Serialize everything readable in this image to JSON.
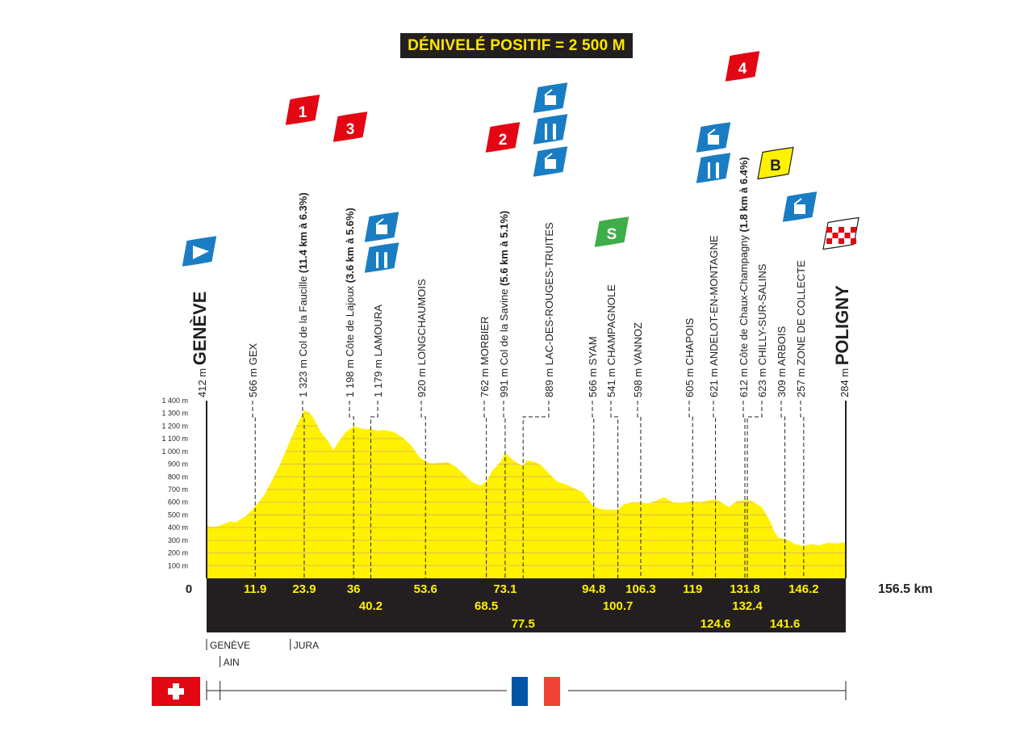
{
  "title": "DÉNIVELÉ POSITIF = 2 500 M",
  "colors": {
    "profile_fill": "#fff200",
    "profile_stripe": "#e8c44a",
    "ground": "#231f20",
    "km_label": "#fff200",
    "climb_flag": "#e30613",
    "feed_flag": "#1a7dc4",
    "sprint_flag": "#3fae49",
    "bonus_flag": "#fff200",
    "swiss_red": "#e30613",
    "french_blue": "#0055a4",
    "french_red": "#ef4135"
  },
  "chart_data": {
    "type": "area",
    "title": "DÉNIVELÉ POSITIF = 2 500 M",
    "xlabel": "",
    "ylabel": "",
    "xlim": [
      0,
      156.5
    ],
    "ylim": [
      0,
      1400
    ],
    "y_unit": "m",
    "x_unit": "km",
    "y_ticks": [
      "1 400 m",
      "1 300 m",
      "1 200 m",
      "1 100 m",
      "1 000 m",
      "900 m",
      "800 m",
      "700 m",
      "600 m",
      "500 m",
      "400 m",
      "300 m",
      "200 m",
      "100 m"
    ],
    "x_start_label": "0",
    "x_end_label": "156.5 km",
    "profile": [
      [
        0,
        412
      ],
      [
        2,
        405
      ],
      [
        4,
        425
      ],
      [
        6,
        450
      ],
      [
        7,
        440
      ],
      [
        8,
        460
      ],
      [
        10,
        500
      ],
      [
        11.9,
        566
      ],
      [
        14,
        650
      ],
      [
        16,
        770
      ],
      [
        18,
        900
      ],
      [
        20,
        1050
      ],
      [
        22,
        1200
      ],
      [
        23.9,
        1323
      ],
      [
        25,
        1310
      ],
      [
        26,
        1270
      ],
      [
        28,
        1150
      ],
      [
        30,
        1070
      ],
      [
        31,
        1010
      ],
      [
        32,
        1060
      ],
      [
        34,
        1150
      ],
      [
        36,
        1198
      ],
      [
        37,
        1190
      ],
      [
        38,
        1180
      ],
      [
        39,
        1175
      ],
      [
        40.2,
        1179
      ],
      [
        42,
        1160
      ],
      [
        43,
        1170
      ],
      [
        44,
        1165
      ],
      [
        46,
        1150
      ],
      [
        48,
        1110
      ],
      [
        50,
        1050
      ],
      [
        52,
        960
      ],
      [
        53.6,
        920
      ],
      [
        55,
        905
      ],
      [
        57,
        910
      ],
      [
        59,
        915
      ],
      [
        61,
        880
      ],
      [
        63,
        820
      ],
      [
        65,
        760
      ],
      [
        67,
        730
      ],
      [
        68.5,
        762
      ],
      [
        70,
        850
      ],
      [
        72,
        920
      ],
      [
        73.1,
        991
      ],
      [
        74,
        960
      ],
      [
        75.5,
        920
      ],
      [
        76.5,
        900
      ],
      [
        77.5,
        889
      ],
      [
        78.5,
        930
      ],
      [
        80,
        920
      ],
      [
        82,
        890
      ],
      [
        84,
        820
      ],
      [
        86,
        760
      ],
      [
        88,
        740
      ],
      [
        90,
        710
      ],
      [
        92,
        680
      ],
      [
        94.8,
        566
      ],
      [
        96,
        550
      ],
      [
        98,
        540
      ],
      [
        100.7,
        541
      ],
      [
        102,
        580
      ],
      [
        104,
        600
      ],
      [
        106.3,
        598
      ],
      [
        108,
        590
      ],
      [
        110,
        610
      ],
      [
        112,
        640
      ],
      [
        114,
        600
      ],
      [
        116,
        595
      ],
      [
        119,
        605
      ],
      [
        121,
        600
      ],
      [
        123,
        615
      ],
      [
        124.6,
        621
      ],
      [
        126,
        600
      ],
      [
        128,
        560
      ],
      [
        129,
        590
      ],
      [
        130,
        610
      ],
      [
        131.8,
        612
      ],
      [
        132.4,
        623
      ],
      [
        134,
        600
      ],
      [
        136,
        560
      ],
      [
        138,
        450
      ],
      [
        139,
        370
      ],
      [
        140,
        320
      ],
      [
        141.6,
        309
      ],
      [
        143,
        290
      ],
      [
        144,
        270
      ],
      [
        146.2,
        257
      ],
      [
        148,
        270
      ],
      [
        150,
        260
      ],
      [
        152,
        280
      ],
      [
        154,
        275
      ],
      [
        156.5,
        284
      ]
    ],
    "km_labels": [
      {
        "km": 11.9,
        "label": "11.9",
        "row": 1
      },
      {
        "km": 23.9,
        "label": "23.9",
        "row": 1
      },
      {
        "km": 36,
        "label": "36",
        "row": 1
      },
      {
        "km": 40.2,
        "label": "40.2",
        "row": 2
      },
      {
        "km": 53.6,
        "label": "53.6",
        "row": 1
      },
      {
        "km": 68.5,
        "label": "68.5",
        "row": 2
      },
      {
        "km": 73.1,
        "label": "73.1",
        "row": 1
      },
      {
        "km": 77.5,
        "label": "77.5",
        "row": 3
      },
      {
        "km": 94.8,
        "label": "94.8",
        "row": 1
      },
      {
        "km": 100.7,
        "label": "100.7",
        "row": 2
      },
      {
        "km": 106.3,
        "label": "106.3",
        "row": 1
      },
      {
        "km": 119,
        "label": "119",
        "row": 1
      },
      {
        "km": 124.6,
        "label": "124.6",
        "row": 3
      },
      {
        "km": 131.8,
        "label": "131.8",
        "row": 1
      },
      {
        "km": 132.4,
        "label": "132.4",
        "row": 2
      },
      {
        "km": 141.6,
        "label": "141.6",
        "row": 3
      },
      {
        "km": 146.2,
        "label": "146.2",
        "row": 1
      }
    ],
    "waypoints": [
      {
        "km": 0,
        "alt": "412 m",
        "name": "GENÈVE",
        "kind": "town-big",
        "badges": [
          "start"
        ]
      },
      {
        "km": 11.9,
        "alt": "566 m",
        "name": "GEX",
        "kind": "town",
        "badges": []
      },
      {
        "km": 23.9,
        "alt": "1 323 m",
        "name": "Col de la Faucille",
        "detail": "(11.4 km à 6.3%)",
        "kind": "climb",
        "badges": [
          "1"
        ]
      },
      {
        "km": 36,
        "alt": "1 198 m",
        "name": "Côte de Lajoux",
        "detail": "(3.6 km à 5.6%)",
        "kind": "climb",
        "badges": [
          "3"
        ]
      },
      {
        "km": 40.2,
        "alt": "1 179 m",
        "name": "LAMOURA",
        "kind": "town",
        "badges": [
          "feed",
          "food"
        ]
      },
      {
        "km": 53.6,
        "alt": "920 m",
        "name": "LONGCHAUMOIS",
        "kind": "town",
        "badges": []
      },
      {
        "km": 68.5,
        "alt": "762 m",
        "name": "MORBIER",
        "kind": "town",
        "badges": []
      },
      {
        "km": 73.1,
        "alt": "991 m",
        "name": "Col de la Savine",
        "detail": "(5.6 km à 5.1%)",
        "kind": "climb",
        "badges": [
          "2"
        ]
      },
      {
        "km": 77.5,
        "alt": "889 m",
        "name": "LAC-DES-ROUGES-TRUITES",
        "kind": "town",
        "badges": [
          "feed",
          "food",
          "feed"
        ]
      },
      {
        "km": 94.8,
        "alt": "566 m",
        "name": "SYAM",
        "kind": "town",
        "badges": []
      },
      {
        "km": 100.7,
        "alt": "541 m",
        "name": "CHAMPAGNOLE",
        "kind": "town",
        "badges": [
          "S"
        ]
      },
      {
        "km": 106.3,
        "alt": "598 m",
        "name": "VANNOZ",
        "kind": "town",
        "badges": []
      },
      {
        "km": 119,
        "alt": "605 m",
        "name": "CHAPOIS",
        "kind": "town",
        "badges": []
      },
      {
        "km": 124.6,
        "alt": "621 m",
        "name": "ANDELOT-EN-MONTAGNE",
        "kind": "town",
        "badges": [
          "feed",
          "food"
        ]
      },
      {
        "km": 131.8,
        "alt": "612 m",
        "name": "Côte de Chaux-Champagny",
        "detail": "(1.8 km à 6.4%)",
        "kind": "climb",
        "badges": [
          "4"
        ]
      },
      {
        "km": 132.4,
        "alt": "623 m",
        "name": "CHILLY-SUR-SALINS",
        "kind": "town",
        "badges": [
          "B"
        ]
      },
      {
        "km": 141.6,
        "alt": "309 m",
        "name": "ARBOIS",
        "kind": "town",
        "badges": []
      },
      {
        "km": 146.2,
        "alt": "257 m",
        "name": "ZONE DE COLLECTE",
        "kind": "town",
        "badges": [
          "feed"
        ]
      },
      {
        "km": 156.5,
        "alt": "284 m",
        "name": "POLIGNY",
        "kind": "town-big",
        "badges": [
          "finish"
        ]
      }
    ],
    "regions": [
      {
        "km": 0,
        "label": "GENÈVE",
        "row": 1
      },
      {
        "km": 3.3,
        "label": "AIN",
        "row": 2
      },
      {
        "km": 20.5,
        "label": "JURA",
        "row": 1
      }
    ]
  }
}
